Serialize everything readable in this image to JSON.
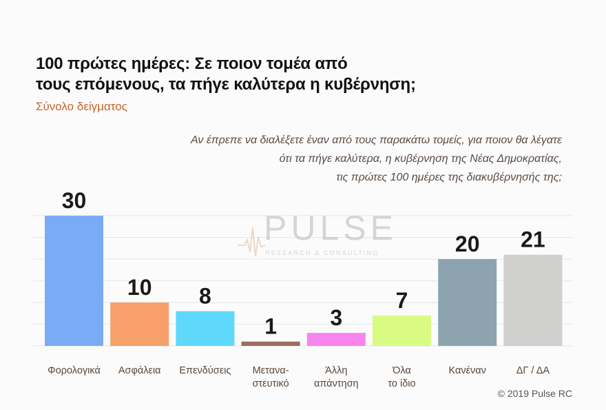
{
  "title_lines": [
    "100 πρώτες ημέρες: Σε ποιον τομέα από",
    "τους επόμενους, τα πήγε καλύτερα η κυβέρνηση;"
  ],
  "subtitle": "Σύνολο δείγματος",
  "question_lines": [
    "Αν έπρεπε να διαλέξετε έναν από τους παρακάτω τομείς, για ποιον θα λέγατε",
    "ότι τα πήγε καλύτερα, η κυβέρνηση της Νέας Δημοκρατίας,",
    "τις πρώτες 100 ημέρες της διακυβέρνησής της;"
  ],
  "watermark": {
    "word": "PULSE",
    "sub": "RESEARCH & CONSULTING"
  },
  "copyright": "© 2019 Pulse RC",
  "chart_data": {
    "type": "bar",
    "categories": [
      [
        "Φορολογικά"
      ],
      [
        "Ασφάλεια"
      ],
      [
        "Επενδύσεις"
      ],
      [
        "Μετανα-",
        "στευτικό"
      ],
      [
        "Άλλη",
        "απάντηση"
      ],
      [
        "Όλα",
        "το ίδιο"
      ],
      [
        "Κανέναν"
      ],
      [
        "ΔΓ / ΔΑ"
      ]
    ],
    "values": [
      30,
      10,
      8,
      1,
      3,
      7,
      20,
      21
    ],
    "colors": [
      "#7aacf6",
      "#f7a06b",
      "#5ed8fb",
      "#9a6e5c",
      "#f884ee",
      "#d9fb84",
      "#8da4b0",
      "#cfcfcd"
    ],
    "ylim": [
      0,
      32
    ],
    "grid": true,
    "title": "100 πρώτες ημέρες: Σε ποιον τομέα από τους επόμενους, τα πήγε καλύτερα η κυβέρνηση;",
    "xlabel": "",
    "ylabel": ""
  }
}
